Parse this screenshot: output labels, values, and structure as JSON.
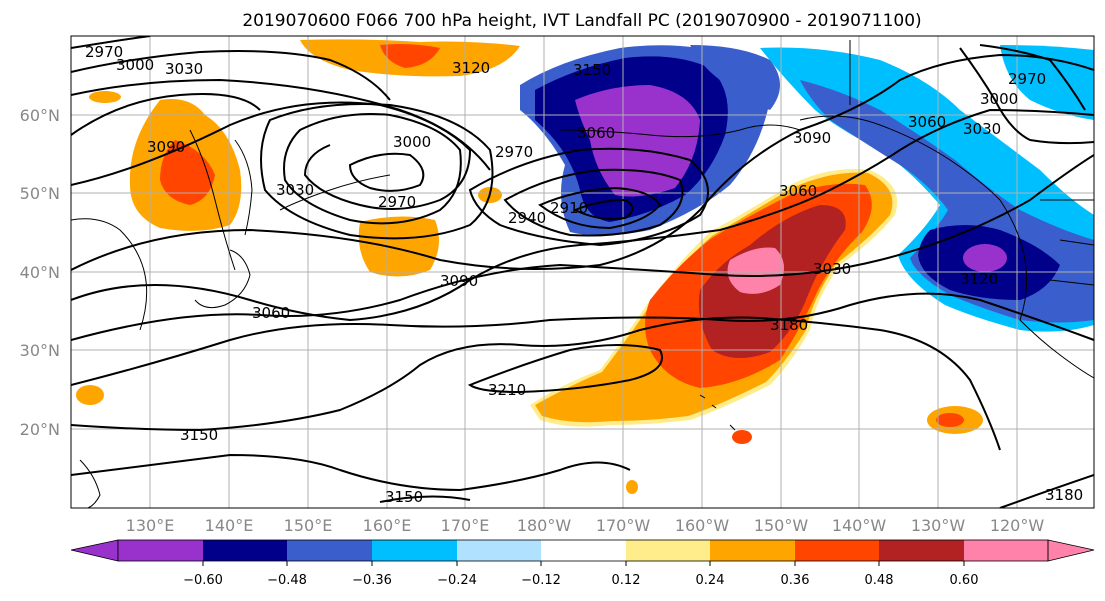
{
  "title": "2019070600 F066 700 hPa height, IVT Landfall PC (2019070900 - 2019071100)",
  "map": {
    "lat_labels": [
      "60°N",
      "50°N",
      "40°N",
      "30°N",
      "20°N"
    ],
    "lon_labels": [
      "130°E",
      "140°E",
      "150°E",
      "160°E",
      "170°E",
      "180°W",
      "170°W",
      "160°W",
      "150°W",
      "140°W",
      "130°W",
      "120°W"
    ],
    "contour_labels": [
      "2970",
      "3000",
      "3030",
      "3090",
      "3000",
      "2970",
      "2970",
      "3030",
      "3060",
      "2940",
      "2910",
      "3090",
      "3060",
      "3120",
      "3150",
      "3090",
      "3060",
      "2970",
      "3000",
      "3030",
      "3060",
      "3030",
      "3180",
      "3120",
      "3210",
      "3150",
      "3150",
      "3180"
    ]
  },
  "colorbar": {
    "colors": [
      "#9932CC",
      "#00008B",
      "#3A5FCD",
      "#00BFFF",
      "#B0E2FF",
      "#FFFFFF",
      "#FFEC8B",
      "#FFA500",
      "#FF4500",
      "#B22222",
      "#FF82AB"
    ],
    "tick_labels": [
      "−0.60",
      "−0.48",
      "−0.36",
      "−0.24",
      "−0.12",
      "0.12",
      "0.24",
      "0.36",
      "0.48",
      "0.60"
    ]
  }
}
